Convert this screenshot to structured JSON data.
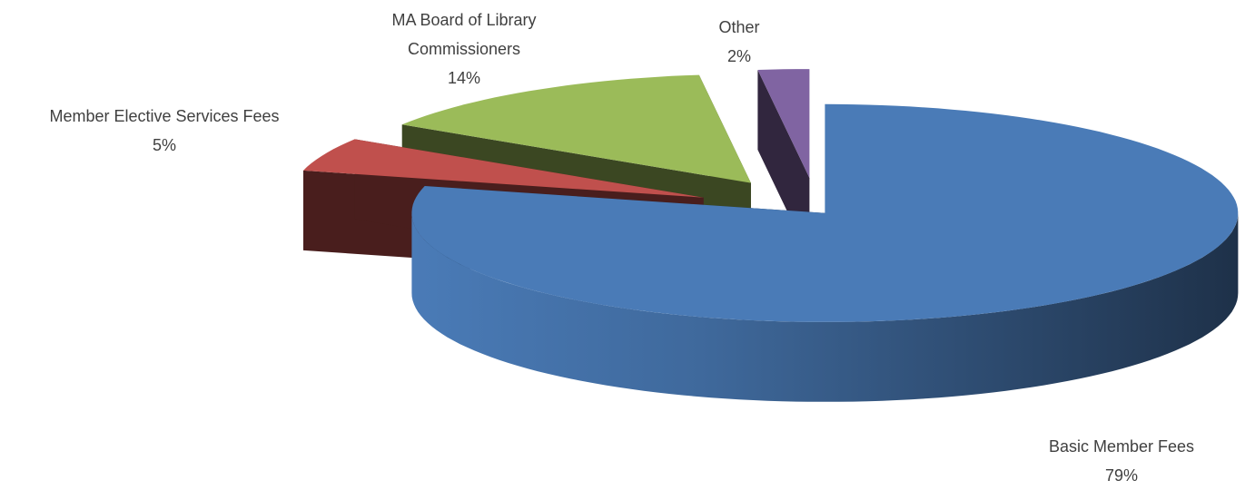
{
  "chart_data": {
    "type": "pie",
    "three_d": true,
    "categories": [
      "Basic Member Fees",
      "Member Elective Services Fees",
      "MA Board of Library Commissioners",
      "Other"
    ],
    "values": [
      79,
      5,
      14,
      2
    ],
    "value_labels": [
      "79%",
      "5%",
      "14%",
      "2%"
    ],
    "colors": [
      "#4a7bb7",
      "#c0504d",
      "#9bbb59",
      "#8064a2"
    ]
  }
}
